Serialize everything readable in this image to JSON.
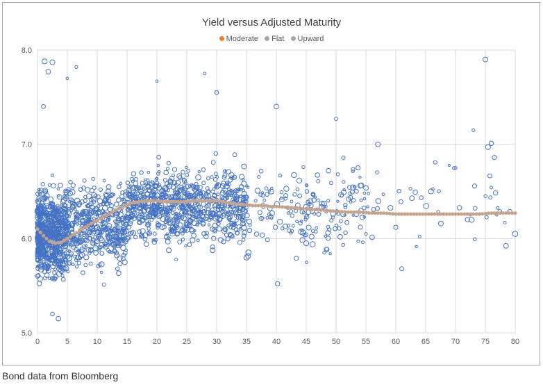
{
  "chart_data": {
    "type": "scatter",
    "title": "Yield versus Adjusted Maturity",
    "xlabel": "",
    "ylabel": "",
    "xlim": [
      0,
      80
    ],
    "ylim": [
      5.0,
      8.0
    ],
    "x_ticks": [
      0,
      5,
      10,
      15,
      20,
      25,
      30,
      35,
      40,
      45,
      50,
      55,
      60,
      65,
      70,
      75,
      80
    ],
    "y_ticks": [
      "5.0",
      "6.0",
      "7.0",
      "8.0"
    ],
    "grid": true,
    "legend_position": "top",
    "series": [
      {
        "name": "Moderate",
        "color": "#ed7d31",
        "marker": "dot"
      },
      {
        "name": "Flat",
        "color": "#a5a5a5",
        "marker": "dot"
      },
      {
        "name": "Upward",
        "color": "#a5a5a5",
        "marker": "dot"
      }
    ],
    "scatter_series": {
      "color": "#4472c4",
      "marker": "hollow-circle",
      "clusters": [
        {
          "x_range": [
            0,
            5
          ],
          "y_center": 6.05,
          "y_spread": 0.35,
          "count": 700
        },
        {
          "x_range": [
            5,
            15
          ],
          "y_center": 6.15,
          "y_spread": 0.35,
          "count": 450
        },
        {
          "x_range": [
            15,
            35
          ],
          "y_center": 6.35,
          "y_spread": 0.3,
          "count": 800
        },
        {
          "x_range": [
            35,
            55
          ],
          "y_center": 6.3,
          "y_spread": 0.35,
          "count": 180
        },
        {
          "x_range": [
            55,
            80
          ],
          "y_center": 6.4,
          "y_spread": 0.35,
          "count": 45
        }
      ],
      "outliers": [
        [
          1.2,
          7.88
        ],
        [
          2.5,
          7.87
        ],
        [
          1.8,
          7.77
        ],
        [
          5.0,
          7.7
        ],
        [
          6.5,
          7.82
        ],
        [
          75.0,
          7.9
        ],
        [
          20.0,
          7.67
        ],
        [
          28.0,
          7.75
        ],
        [
          30.0,
          7.55
        ],
        [
          50.0,
          7.27
        ],
        [
          73.0,
          7.15
        ],
        [
          76.0,
          7.01
        ],
        [
          76.5,
          6.86
        ],
        [
          1.0,
          7.4
        ],
        [
          40.0,
          7.4
        ],
        [
          40.2,
          5.52
        ],
        [
          61.0,
          5.68
        ],
        [
          3.5,
          5.15
        ],
        [
          2.5,
          5.2
        ],
        [
          70.0,
          6.75
        ],
        [
          72.0,
          6.2
        ],
        [
          80.0,
          6.05
        ],
        [
          64.0,
          6.02
        ],
        [
          60.0,
          6.12
        ],
        [
          55.0,
          6.05
        ],
        [
          45.0,
          5.95
        ],
        [
          48.0,
          5.85
        ],
        [
          35.0,
          5.8
        ],
        [
          57.0,
          7.0
        ],
        [
          54.0,
          6.65
        ]
      ]
    },
    "fitted_curve": {
      "name": "Moderate",
      "color": "#f0a070",
      "points": [
        [
          0,
          6.1
        ],
        [
          1,
          6.03
        ],
        [
          2,
          5.97
        ],
        [
          3,
          5.95
        ],
        [
          4,
          5.96
        ],
        [
          5,
          6.0
        ],
        [
          6,
          6.04
        ],
        [
          7,
          6.08
        ],
        [
          8,
          6.12
        ],
        [
          9,
          6.16
        ],
        [
          10,
          6.19
        ],
        [
          11,
          6.23
        ],
        [
          12,
          6.26
        ],
        [
          13,
          6.3
        ],
        [
          14,
          6.33
        ],
        [
          15,
          6.36
        ],
        [
          16,
          6.38
        ],
        [
          17,
          6.39
        ],
        [
          18,
          6.4
        ],
        [
          19,
          6.4
        ],
        [
          20,
          6.4
        ],
        [
          21,
          6.39
        ],
        [
          22,
          6.39
        ],
        [
          23,
          6.39
        ],
        [
          24,
          6.39
        ],
        [
          25,
          6.39
        ],
        [
          26,
          6.4
        ],
        [
          27,
          6.4
        ],
        [
          28,
          6.4
        ],
        [
          29,
          6.4
        ],
        [
          30,
          6.4
        ],
        [
          31,
          6.39
        ],
        [
          32,
          6.38
        ],
        [
          33,
          6.37
        ],
        [
          34,
          6.36
        ],
        [
          35,
          6.36
        ],
        [
          36,
          6.35
        ],
        [
          37,
          6.35
        ],
        [
          38,
          6.35
        ],
        [
          39,
          6.34
        ],
        [
          40,
          6.34
        ],
        [
          42,
          6.33
        ],
        [
          44,
          6.32
        ],
        [
          46,
          6.31
        ],
        [
          48,
          6.3
        ],
        [
          50,
          6.29
        ],
        [
          52,
          6.28
        ],
        [
          54,
          6.28
        ],
        [
          56,
          6.27
        ],
        [
          58,
          6.27
        ],
        [
          60,
          6.26
        ],
        [
          62,
          6.26
        ],
        [
          64,
          6.26
        ],
        [
          66,
          6.26
        ],
        [
          68,
          6.26
        ],
        [
          70,
          6.26
        ],
        [
          72,
          6.26
        ],
        [
          74,
          6.26
        ],
        [
          76,
          6.27
        ],
        [
          78,
          6.27
        ],
        [
          80,
          6.27
        ]
      ]
    }
  },
  "caption": "Bond data from Bloomberg"
}
